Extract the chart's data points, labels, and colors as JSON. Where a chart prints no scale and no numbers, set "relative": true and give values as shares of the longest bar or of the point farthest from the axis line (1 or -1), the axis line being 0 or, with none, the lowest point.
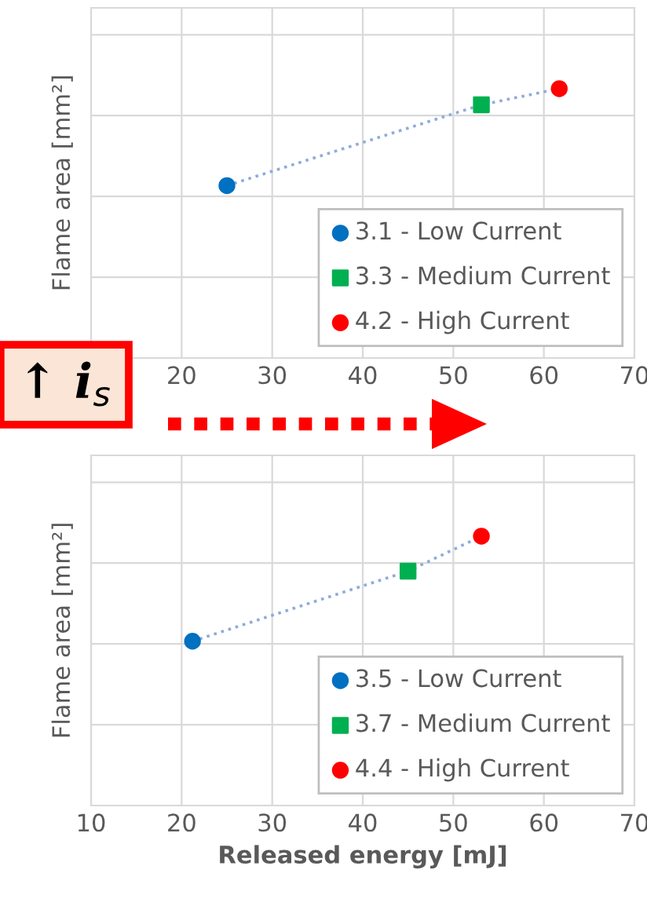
{
  "chart_data": [
    {
      "type": "scatter",
      "ylabel": "Flame area [mm²]",
      "relative": true,
      "xlim": [
        10,
        70
      ],
      "xticks": [
        20,
        30,
        40,
        50,
        60,
        70
      ],
      "grid": true,
      "legend": "bottom right",
      "annotations": [
        "↑ i$_{s}$"
      ],
      "series": [
        {
          "type": "line",
          "color": "#8faadc",
          "line_style": "dotted",
          "marker": "none",
          "x": [
            25.0,
            53.1,
            61.7
          ],
          "values": [
            0.64,
            0.94,
            1
          ]
        },
        {
          "name": "3.1 - Low Current",
          "color": "#0070c0",
          "marker": "circle",
          "x": [
            25.0
          ],
          "values": [
            0.64
          ]
        },
        {
          "name": "3.3 - Medium Current",
          "color": "#00b050",
          "marker": "square",
          "x": [
            53.1
          ],
          "values": [
            0.94
          ]
        },
        {
          "name": "4.2 - High Current",
          "color": "#ff0000",
          "marker": "circle",
          "x": [
            61.7
          ],
          "values": [
            1
          ]
        }
      ]
    },
    {
      "type": "scatter",
      "xlabel": "Released energy [mJ]",
      "ylabel": "Flame area [mm²]",
      "relative": true,
      "xlim": [
        10,
        70
      ],
      "xticks": [
        10,
        20,
        30,
        40,
        50,
        60,
        70
      ],
      "grid": true,
      "legend": "bottom right",
      "series": [
        {
          "type": "line",
          "color": "#8faadc",
          "line_style": "dotted",
          "marker": "none",
          "x": [
            21.2,
            45.0,
            53.1
          ],
          "values": [
            0.61,
            0.87,
            1
          ]
        },
        {
          "name": "3.5 - Low Current",
          "color": "#0070c0",
          "marker": "circle",
          "x": [
            21.2
          ],
          "values": [
            0.61
          ]
        },
        {
          "name": "3.7 - Medium Current",
          "color": "#00b050",
          "marker": "square",
          "x": [
            45.0
          ],
          "values": [
            0.87
          ]
        },
        {
          "name": "4.4 - High Current",
          "color": "#ff0000",
          "marker": "circle",
          "x": [
            53.1
          ],
          "values": [
            1
          ]
        }
      ]
    }
  ]
}
